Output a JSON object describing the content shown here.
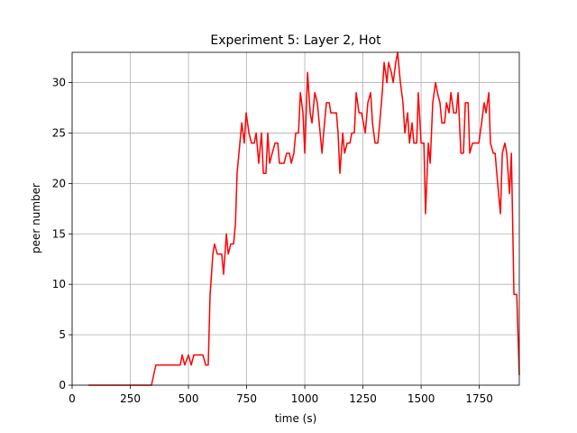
{
  "chart_data": {
    "type": "line",
    "title": "Experiment 5: Layer 2, Hot",
    "xlabel": "time (s)",
    "ylabel": "peer number",
    "x": [
      70,
      341,
      360,
      465,
      473,
      484,
      500,
      512,
      523,
      562,
      574,
      585,
      593,
      605,
      612,
      624,
      643,
      651,
      663,
      671,
      682,
      694,
      702,
      709,
      721,
      729,
      740,
      748,
      760,
      771,
      783,
      791,
      802,
      814,
      822,
      833,
      841,
      849,
      860,
      872,
      884,
      891,
      911,
      922,
      934,
      942,
      953,
      961,
      973,
      981,
      992,
      1000,
      1012,
      1023,
      1031,
      1043,
      1054,
      1062,
      1074,
      1081,
      1093,
      1105,
      1112,
      1136,
      1143,
      1151,
      1163,
      1171,
      1182,
      1194,
      1202,
      1213,
      1221,
      1233,
      1244,
      1252,
      1260,
      1271,
      1283,
      1291,
      1302,
      1314,
      1322,
      1333,
      1341,
      1353,
      1360,
      1372,
      1380,
      1391,
      1399,
      1411,
      1422,
      1430,
      1442,
      1450,
      1461,
      1469,
      1481,
      1488,
      1500,
      1512,
      1519,
      1531,
      1539,
      1550,
      1562,
      1570,
      1581,
      1589,
      1601,
      1609,
      1620,
      1628,
      1640,
      1651,
      1659,
      1671,
      1682,
      1690,
      1702,
      1709,
      1721,
      1740,
      1748,
      1760,
      1771,
      1779,
      1791,
      1798,
      1810,
      1818,
      1829,
      1841,
      1849,
      1860,
      1868,
      1880,
      1888,
      1899,
      1911,
      1922
    ],
    "series": [
      {
        "color": "#ff0000",
        "values": [
          0,
          0,
          2,
          2,
          3,
          2,
          3,
          2,
          3,
          3,
          2,
          2,
          9,
          13,
          14,
          13,
          13,
          11,
          15,
          13,
          14,
          14,
          16,
          21,
          24,
          26,
          24,
          27,
          25,
          24,
          24,
          25,
          22,
          25,
          21,
          21,
          25,
          22,
          23,
          24,
          24,
          22,
          22,
          23,
          23,
          22,
          23,
          25,
          25,
          29,
          27,
          23,
          31,
          27,
          26,
          29,
          28,
          26,
          23,
          25,
          28,
          28,
          27,
          27,
          25,
          21,
          25,
          23,
          24,
          24,
          25,
          25,
          29,
          27,
          27,
          26,
          25,
          28,
          29,
          26,
          24,
          24,
          26,
          29,
          32,
          30,
          32,
          31,
          30,
          32,
          33,
          30,
          28,
          25,
          27,
          24,
          26,
          24,
          24,
          29,
          24,
          24,
          17,
          24,
          22,
          28,
          30,
          29,
          28,
          26,
          26,
          28,
          27,
          29,
          27,
          27,
          29,
          23,
          23,
          28,
          28,
          23,
          24,
          24,
          24,
          26,
          28,
          27,
          29,
          24,
          23,
          23,
          20,
          17,
          23,
          24,
          23,
          19,
          23,
          9,
          9,
          1
        ]
      }
    ],
    "xlim": [
      0,
      1922
    ],
    "ylim": [
      0,
      33
    ],
    "xticks": [
      0,
      250,
      500,
      750,
      1000,
      1250,
      1500,
      1750
    ],
    "yticks": [
      0,
      5,
      10,
      15,
      20,
      25,
      30
    ],
    "grid": true
  }
}
